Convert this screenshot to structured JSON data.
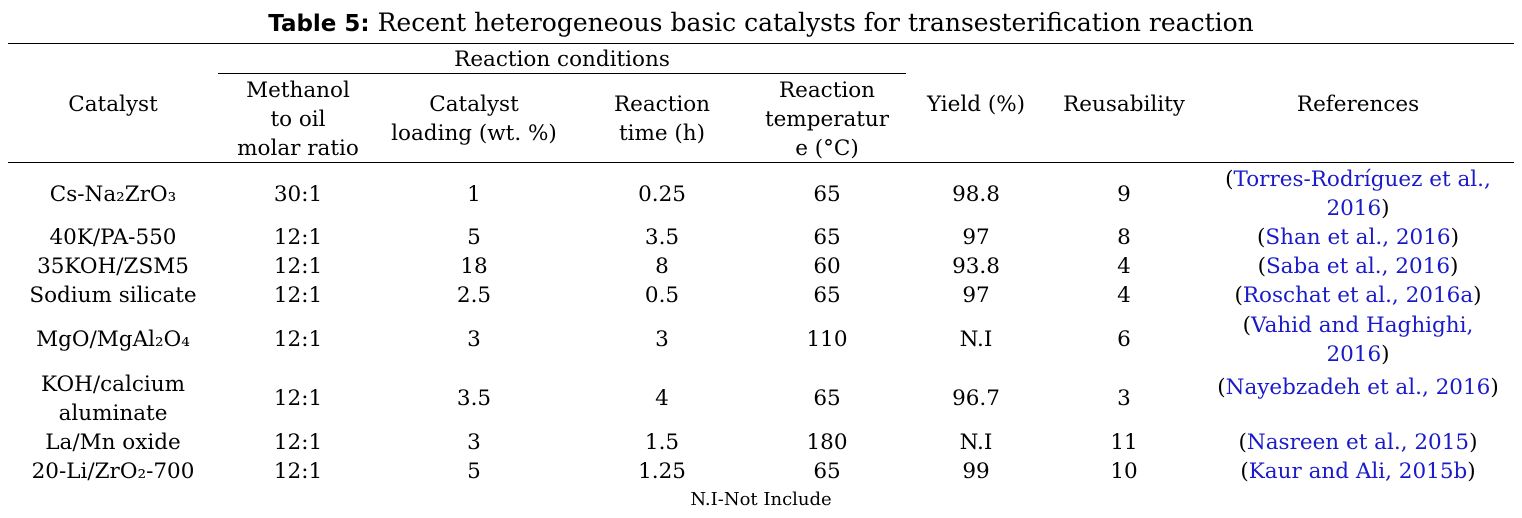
{
  "title": {
    "bold": "Table 5:",
    "text": " Recent heterogeneous basic catalysts for transesterification reaction"
  },
  "group_header": "Reaction conditions",
  "columns": [
    {
      "l1": "Catalyst"
    },
    {
      "l1": "Methanol",
      "l2": "to oil",
      "l3": "molar ratio"
    },
    {
      "l1": "Catalyst",
      "l2": "loading (wt. %)"
    },
    {
      "l1": "Reaction",
      "l2": "time (h)"
    },
    {
      "l1": "Reaction",
      "l2": "temperatur",
      "l3": "e (°C)"
    },
    {
      "l1": "Yield (%)"
    },
    {
      "l1": "Reusability"
    },
    {
      "l1": "References"
    }
  ],
  "rows": [
    {
      "catalyst": [
        "Cs-Na₂ZrO₃"
      ],
      "ratio": "30:1",
      "loading": "1",
      "time": "0.25",
      "temp": "65",
      "yield": "98.8",
      "reuse": "9",
      "ref": [
        "Torres-Rodríguez et al.,",
        "2016"
      ]
    },
    {
      "catalyst": [
        "40K/PA-550"
      ],
      "ratio": "12:1",
      "loading": "5",
      "time": "3.5",
      "temp": "65",
      "yield": "97",
      "reuse": "8",
      "ref": [
        "Shan et al., 2016"
      ]
    },
    {
      "catalyst": [
        "35KOH/ZSM5"
      ],
      "ratio": "12:1",
      "loading": "18",
      "time": "8",
      "temp": "60",
      "yield": "93.8",
      "reuse": "4",
      "ref": [
        "Saba et al., 2016"
      ]
    },
    {
      "catalyst": [
        "Sodium silicate"
      ],
      "ratio": "12:1",
      "loading": "2.5",
      "time": "0.5",
      "temp": "65",
      "yield": "97",
      "reuse": "4",
      "ref": [
        "Roschat et al., 2016a"
      ]
    },
    {
      "catalyst": [
        "MgO/MgAl₂O₄"
      ],
      "ratio": "12:1",
      "loading": "3",
      "time": "3",
      "temp": "110",
      "yield": "N.I",
      "reuse": "6",
      "ref": [
        "Vahid and Haghighi,",
        "2016"
      ]
    },
    {
      "catalyst": [
        "KOH/calcium",
        "aluminate"
      ],
      "ratio": "12:1",
      "loading": "3.5",
      "time": "4",
      "temp": "65",
      "yield": "96.7",
      "reuse": "3",
      "ref": [
        "Nayebzadeh et al., 2016"
      ]
    },
    {
      "catalyst": [
        "La/Mn oxide"
      ],
      "ratio": "12:1",
      "loading": "3",
      "time": "1.5",
      "temp": "180",
      "yield": "N.I",
      "reuse": "11",
      "ref": [
        "Nasreen et al., 2015"
      ]
    },
    {
      "catalyst": [
        "20-Li/ZrO₂-700"
      ],
      "ratio": "12:1",
      "loading": "5",
      "time": "1.25",
      "temp": "65",
      "yield": "99",
      "reuse": "10",
      "ref": [
        "Kaur and Ali, 2015b"
      ]
    }
  ],
  "footnote": "N.I-Not Include"
}
